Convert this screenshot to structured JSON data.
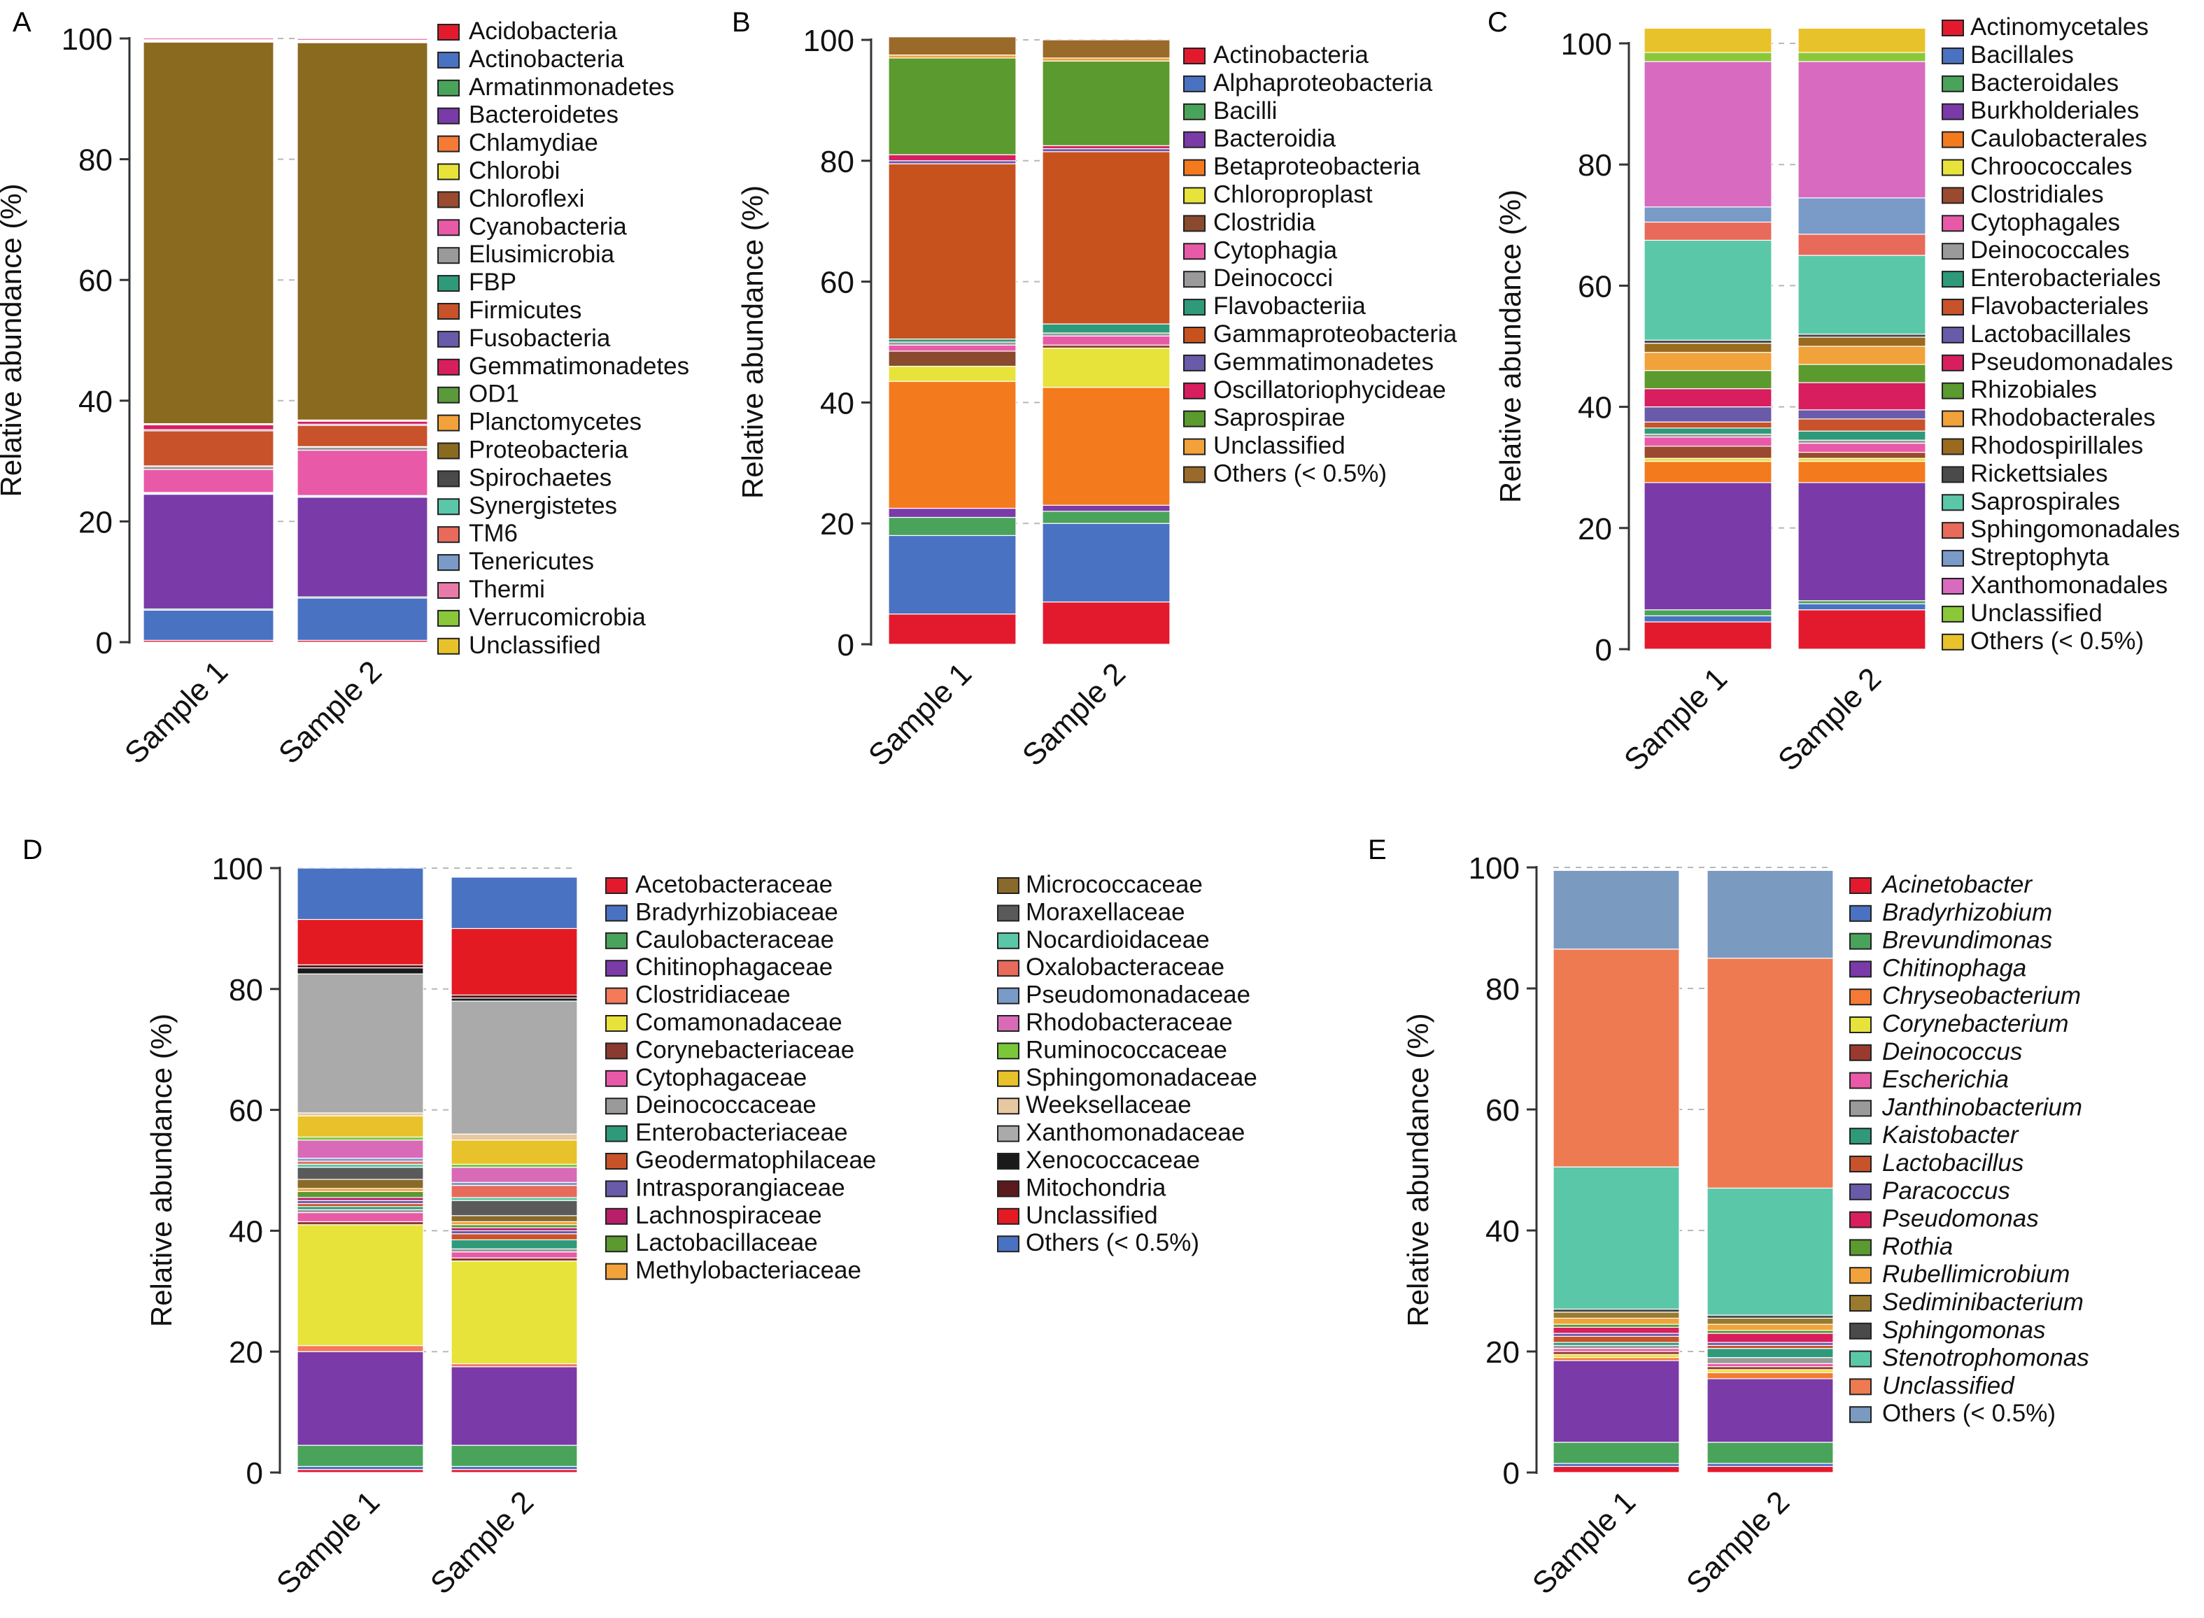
{
  "colors": {
    "axis": "#333333",
    "grid": "#b8b8b8",
    "bar_outline": "#ffffff"
  },
  "chart_data": [
    {
      "panel_label": "A",
      "type": "bar",
      "stacked": true,
      "categories": [
        "Sample 1",
        "Sample 2"
      ],
      "ylabel": "Relative abundance (%)",
      "ylim": [
        0,
        100
      ],
      "yticks": [
        0,
        20,
        40,
        60,
        80,
        100
      ],
      "grid": true,
      "legend_position": "right",
      "legend_italic": false,
      "series": [
        {
          "name": "Acidobacteria",
          "color": "#e31a2e",
          "values": [
            0.3,
            0.3
          ]
        },
        {
          "name": "Actinobacteria",
          "color": "#4a72c2",
          "values": [
            5.0,
            7.0
          ]
        },
        {
          "name": "Armatinmonadetes",
          "color": "#4aa35a",
          "values": [
            0.2,
            0.2
          ]
        },
        {
          "name": "Bacteroidetes",
          "color": "#7a3aa8",
          "values": [
            19.0,
            16.5
          ]
        },
        {
          "name": "Chlamydiae",
          "color": "#f47a35",
          "values": [
            0.1,
            0.1
          ]
        },
        {
          "name": "Chlorobi",
          "color": "#e8e33a",
          "values": [
            0.1,
            0.1
          ]
        },
        {
          "name": "Chloroflexi",
          "color": "#9a4a2e",
          "values": [
            0.1,
            0.1
          ]
        },
        {
          "name": "Cyanobacteria",
          "color": "#e85aa8",
          "values": [
            3.8,
            7.5
          ]
        },
        {
          "name": "Elusimicrobia",
          "color": "#9a9a9a",
          "values": [
            0.5,
            0.5
          ]
        },
        {
          "name": "FBP",
          "color": "#2e9a7a",
          "values": [
            0.1,
            0.1
          ]
        },
        {
          "name": "Firmicutes",
          "color": "#c8522a",
          "values": [
            5.8,
            3.5
          ]
        },
        {
          "name": "Fusobacteria",
          "color": "#6a5aaa",
          "values": [
            0.2,
            0.2
          ]
        },
        {
          "name": "Gemmatimonadetes",
          "color": "#d81e5e",
          "values": [
            0.8,
            0.5
          ]
        },
        {
          "name": "OD1",
          "color": "#5a9a3a",
          "values": [
            0.1,
            0.1
          ]
        },
        {
          "name": "Planctomycetes",
          "color": "#f2a23a",
          "values": [
            0.1,
            0.1
          ]
        },
        {
          "name": "Proteobacteria",
          "color": "#8a6a1e",
          "values": [
            63.2,
            62.5
          ]
        },
        {
          "name": "Spirochaetes",
          "color": "#4a4a4a",
          "values": [
            0.1,
            0.1
          ]
        },
        {
          "name": "Synergistetes",
          "color": "#5ac8a8",
          "values": [
            0.1,
            0.1
          ]
        },
        {
          "name": "TM6",
          "color": "#e86a5a",
          "values": [
            0.1,
            0.1
          ]
        },
        {
          "name": "Tenericutes",
          "color": "#7a9ac8",
          "values": [
            0.1,
            0.1
          ]
        },
        {
          "name": "Thermi",
          "color": "#e87aa8",
          "values": [
            0.3,
            0.3
          ]
        },
        {
          "name": "Verrucomicrobia",
          "color": "#8ac83a",
          "values": [
            0.1,
            0.1
          ]
        },
        {
          "name": "Unclassified",
          "color": "#e8c22a",
          "values": [
            0.1,
            0.1
          ]
        }
      ]
    },
    {
      "panel_label": "B",
      "type": "bar",
      "stacked": true,
      "categories": [
        "Sample 1",
        "Sample 2"
      ],
      "ylabel": "Relative abundance (%)",
      "ylim": [
        0,
        100
      ],
      "yticks": [
        0,
        20,
        40,
        60,
        80,
        100
      ],
      "grid": true,
      "legend_position": "right",
      "legend_italic": false,
      "series": [
        {
          "name": "Actinobacteria",
          "color": "#e31a2e",
          "values": [
            5.0,
            7.0
          ]
        },
        {
          "name": "Alphaproteobacteria",
          "color": "#4a72c2",
          "values": [
            13.0,
            13.0
          ]
        },
        {
          "name": "Bacilli",
          "color": "#4aa35a",
          "values": [
            3.0,
            2.0
          ]
        },
        {
          "name": "Bacteroidia",
          "color": "#7a3aa8",
          "values": [
            1.5,
            1.0
          ]
        },
        {
          "name": "Betaproteobacteria",
          "color": "#f47a1e",
          "values": [
            21.0,
            19.5
          ]
        },
        {
          "name": "Chloroproplast",
          "color": "#e8e33a",
          "values": [
            2.5,
            6.5
          ]
        },
        {
          "name": "Clostridia",
          "color": "#8a4a2e",
          "values": [
            2.5,
            0.5
          ]
        },
        {
          "name": "Cytophagia",
          "color": "#e85aa8",
          "values": [
            1.0,
            1.5
          ]
        },
        {
          "name": "Deinococci",
          "color": "#9a9a9a",
          "values": [
            0.5,
            0.5
          ]
        },
        {
          "name": "Flavobacteriia",
          "color": "#2e9a7a",
          "values": [
            0.5,
            1.5
          ]
        },
        {
          "name": "Gammaproteobacteria",
          "color": "#c8521e",
          "values": [
            29.0,
            28.5
          ]
        },
        {
          "name": "Gemmatimonadetes",
          "color": "#6a5aaa",
          "values": [
            0.5,
            0.5
          ]
        },
        {
          "name": "Oscillatoriophycideae",
          "color": "#d81e5e",
          "values": [
            1.0,
            0.5
          ]
        },
        {
          "name": "Saprospirae",
          "color": "#5a9a2e",
          "values": [
            16.0,
            14.0
          ]
        },
        {
          "name": "Unclassified",
          "color": "#f2a23a",
          "values": [
            0.5,
            0.5
          ]
        },
        {
          "name": "Others (< 0.5%)",
          "color": "#9a6a2a",
          "values": [
            3.0,
            3.0
          ]
        }
      ]
    },
    {
      "panel_label": "C",
      "type": "bar",
      "stacked": true,
      "categories": [
        "Sample 1",
        "Sample 2"
      ],
      "ylabel": "Relative abundance (%)",
      "ylim": [
        0,
        100
      ],
      "yticks": [
        0,
        20,
        40,
        60,
        80,
        100
      ],
      "grid": true,
      "legend_position": "right",
      "legend_italic": false,
      "series": [
        {
          "name": "Actinomycetales",
          "color": "#e31a2e",
          "values": [
            4.5,
            6.5
          ]
        },
        {
          "name": "Bacillales",
          "color": "#4a72c2",
          "values": [
            1.0,
            1.0
          ]
        },
        {
          "name": "Bacteroidales",
          "color": "#4aa35a",
          "values": [
            1.0,
            0.5
          ]
        },
        {
          "name": "Burkholderiales",
          "color": "#7a3aa8",
          "values": [
            21.0,
            19.5
          ]
        },
        {
          "name": "Caulobacterales",
          "color": "#f47a1e",
          "values": [
            3.5,
            3.5
          ]
        },
        {
          "name": "Chroococcales",
          "color": "#e8e33a",
          "values": [
            0.5,
            0.5
          ]
        },
        {
          "name": "Clostridiales",
          "color": "#9a4a2e",
          "values": [
            2.0,
            1.0
          ]
        },
        {
          "name": "Cytophagales",
          "color": "#e85aa8",
          "values": [
            1.5,
            1.5
          ]
        },
        {
          "name": "Deinococcales",
          "color": "#9a9a9a",
          "values": [
            0.5,
            0.5
          ]
        },
        {
          "name": "Enterobacteriales",
          "color": "#2e9a7a",
          "values": [
            1.0,
            1.5
          ]
        },
        {
          "name": "Flavobacteriales",
          "color": "#c8522a",
          "values": [
            1.0,
            2.0
          ]
        },
        {
          "name": "Lactobacillales",
          "color": "#6a5aaa",
          "values": [
            2.5,
            1.5
          ]
        },
        {
          "name": "Pseudomonadales",
          "color": "#d81e5e",
          "values": [
            3.0,
            4.5
          ]
        },
        {
          "name": "Rhizobiales",
          "color": "#5a9a2e",
          "values": [
            3.0,
            3.0
          ]
        },
        {
          "name": "Rhodobacterales",
          "color": "#f2a23a",
          "values": [
            3.0,
            3.0
          ]
        },
        {
          "name": "Rhodospirillales",
          "color": "#9a6a1e",
          "values": [
            1.5,
            1.5
          ]
        },
        {
          "name": "Rickettsiales",
          "color": "#4a4a4a",
          "values": [
            0.5,
            0.5
          ]
        },
        {
          "name": "Saprospirales",
          "color": "#5ac8a8",
          "values": [
            16.5,
            13.0
          ]
        },
        {
          "name": "Sphingomonadales",
          "color": "#e86a5a",
          "values": [
            3.0,
            3.5
          ]
        },
        {
          "name": "Streptophyta",
          "color": "#7a9ac8",
          "values": [
            2.5,
            6.0
          ]
        },
        {
          "name": "Xanthomonadales",
          "color": "#d86ac0",
          "values": [
            24.0,
            22.5
          ]
        },
        {
          "name": "Unclassified",
          "color": "#8ac83a",
          "values": [
            1.5,
            1.5
          ]
        },
        {
          "name": "Others (< 0.5%)",
          "color": "#e8c22a",
          "values": [
            4.0,
            4.0
          ]
        }
      ]
    },
    {
      "panel_label": "D",
      "type": "bar",
      "stacked": true,
      "categories": [
        "Sample 1",
        "Sample 2"
      ],
      "ylabel": "Relative abundance (%)",
      "ylim": [
        0,
        100
      ],
      "yticks": [
        0,
        20,
        40,
        60,
        80,
        100
      ],
      "grid": true,
      "legend_position": "right",
      "legend_italic": false,
      "series": [
        {
          "name": "Acetobacteraceae",
          "color": "#e31a2e",
          "values": [
            0.5,
            0.5
          ]
        },
        {
          "name": "Bradyrhizobiaceae",
          "color": "#4a72c2",
          "values": [
            0.5,
            0.5
          ]
        },
        {
          "name": "Caulobacteraceae",
          "color": "#4aa35a",
          "values": [
            3.5,
            3.5
          ]
        },
        {
          "name": "Chitinophagaceae",
          "color": "#7a3aa8",
          "values": [
            15.5,
            13.0
          ]
        },
        {
          "name": "Clostridiaceae",
          "color": "#f47a5a",
          "values": [
            1.0,
            0.5
          ]
        },
        {
          "name": "Comamonadaceae",
          "color": "#e8e33a",
          "values": [
            20.0,
            17.0
          ]
        },
        {
          "name": "Corynebacteriaceae",
          "color": "#8a3a2e",
          "values": [
            0.5,
            0.5
          ]
        },
        {
          "name": "Cytophagaceae",
          "color": "#e85aa8",
          "values": [
            1.5,
            1.0
          ]
        },
        {
          "name": "Deinococcaceae",
          "color": "#9a9a9a",
          "values": [
            0.5,
            0.5
          ]
        },
        {
          "name": "Enterobacteriaceae",
          "color": "#2e9a7a",
          "values": [
            0.5,
            1.5
          ]
        },
        {
          "name": "Geodermatophilaceae",
          "color": "#c8522a",
          "values": [
            0.5,
            1.0
          ]
        },
        {
          "name": "Intrasporangiaceae",
          "color": "#6a5aaa",
          "values": [
            0.5,
            0.5
          ]
        },
        {
          "name": "Lachnospiraceae",
          "color": "#b81e6a",
          "values": [
            0.5,
            0.5
          ]
        },
        {
          "name": "Lactobacillaceae",
          "color": "#5a9a2e",
          "values": [
            1.0,
            0.5
          ]
        },
        {
          "name": "Methylobacteriaceae",
          "color": "#f2a23a",
          "values": [
            0.5,
            0.5
          ]
        },
        {
          "name": "Micrococcaceae",
          "color": "#8a6a2a",
          "values": [
            1.5,
            1.0
          ]
        },
        {
          "name": "Moraxellaceae",
          "color": "#5a5a5a",
          "values": [
            2.0,
            2.5
          ]
        },
        {
          "name": "Nocardioidaceae",
          "color": "#5ac8a8",
          "values": [
            0.5,
            0.5
          ]
        },
        {
          "name": "Oxalobacteraceae",
          "color": "#e86a5a",
          "values": [
            0.5,
            2.0
          ]
        },
        {
          "name": "Pseudomonadaceae",
          "color": "#7a9ac8",
          "values": [
            0.5,
            0.5
          ]
        },
        {
          "name": "Rhodobacteraceae",
          "color": "#d86ab8",
          "values": [
            3.0,
            2.5
          ]
        },
        {
          "name": "Ruminococcaceae",
          "color": "#7ac83a",
          "values": [
            0.5,
            0.5
          ]
        },
        {
          "name": "Sphingomonadaceae",
          "color": "#e8c22a",
          "values": [
            3.5,
            4.0
          ]
        },
        {
          "name": "Weeksellaceae",
          "color": "#e8c8a0",
          "values": [
            0.5,
            1.0
          ]
        },
        {
          "name": "Xanthomonadaceae",
          "color": "#aaaaaa",
          "values": [
            23.0,
            22.0
          ]
        },
        {
          "name": "Xenococcaceae",
          "color": "#1a1a1a",
          "values": [
            1.0,
            0.5
          ]
        },
        {
          "name": "Mitochondria",
          "color": "#5a1a1e",
          "values": [
            0.5,
            0.5
          ]
        },
        {
          "name": "Unclassified",
          "color": "#e31a22",
          "values": [
            7.5,
            11.0
          ]
        },
        {
          "name": "Others (< 0.5%)",
          "color": "#4a72c2",
          "values": [
            8.5,
            8.5
          ]
        }
      ]
    },
    {
      "panel_label": "E",
      "type": "bar",
      "stacked": true,
      "categories": [
        "Sample 1",
        "Sample 2"
      ],
      "ylabel": "Relative abundance (%)",
      "ylim": [
        0,
        100
      ],
      "yticks": [
        0,
        20,
        40,
        60,
        80,
        100
      ],
      "grid": true,
      "legend_position": "right",
      "legend_italic": true,
      "series": [
        {
          "name": "Acinetobacter",
          "color": "#e31a2e",
          "values": [
            1.0,
            1.0
          ]
        },
        {
          "name": "Bradyrhizobium",
          "color": "#4a72c2",
          "values": [
            0.5,
            0.5
          ]
        },
        {
          "name": "Brevundimonas",
          "color": "#4aa35a",
          "values": [
            3.5,
            3.5
          ]
        },
        {
          "name": "Chitinophaga",
          "color": "#7a3aa8",
          "values": [
            13.5,
            10.5
          ]
        },
        {
          "name": "Chryseobacterium",
          "color": "#f47a35",
          "values": [
            0.5,
            1.0
          ]
        },
        {
          "name": "Corynebacterium",
          "color": "#e8e33a",
          "values": [
            0.5,
            0.5
          ]
        },
        {
          "name": "Deinococcus",
          "color": "#9a3a2e",
          "values": [
            0.5,
            0.5
          ]
        },
        {
          "name": "Escherichia",
          "color": "#e85aa8",
          "values": [
            0.5,
            0.5
          ]
        },
        {
          "name": "Janthinobacterium",
          "color": "#9a9a9a",
          "values": [
            0.5,
            1.0
          ]
        },
        {
          "name": "Kaistobacter",
          "color": "#2e9a7a",
          "values": [
            0.5,
            1.5
          ]
        },
        {
          "name": "Lactobacillus",
          "color": "#c8522a",
          "values": [
            1.0,
            0.5
          ]
        },
        {
          "name": "Paracoccus",
          "color": "#6a5aaa",
          "values": [
            0.5,
            0.5
          ]
        },
        {
          "name": "Pseudomonas",
          "color": "#d81e5e",
          "values": [
            1.0,
            1.5
          ]
        },
        {
          "name": "Rothia",
          "color": "#5a9a2e",
          "values": [
            0.5,
            0.5
          ]
        },
        {
          "name": "Rubellimicrobium",
          "color": "#f2a23a",
          "values": [
            1.0,
            1.0
          ]
        },
        {
          "name": "Sediminibacterium",
          "color": "#9a7a2e",
          "values": [
            1.0,
            1.0
          ]
        },
        {
          "name": "Sphingomonas",
          "color": "#4a4a4a",
          "values": [
            0.5,
            0.5
          ]
        },
        {
          "name": "Stenotrophomonas",
          "color": "#5ac8a8",
          "values": [
            23.5,
            21.0
          ]
        },
        {
          "name": "Unclassified",
          "color": "#ee7a52",
          "values": [
            36.0,
            38.0
          ]
        },
        {
          "name": "Others (< 0.5%)",
          "color": "#7a9ac0",
          "values": [
            13.0,
            14.5
          ]
        }
      ]
    }
  ]
}
